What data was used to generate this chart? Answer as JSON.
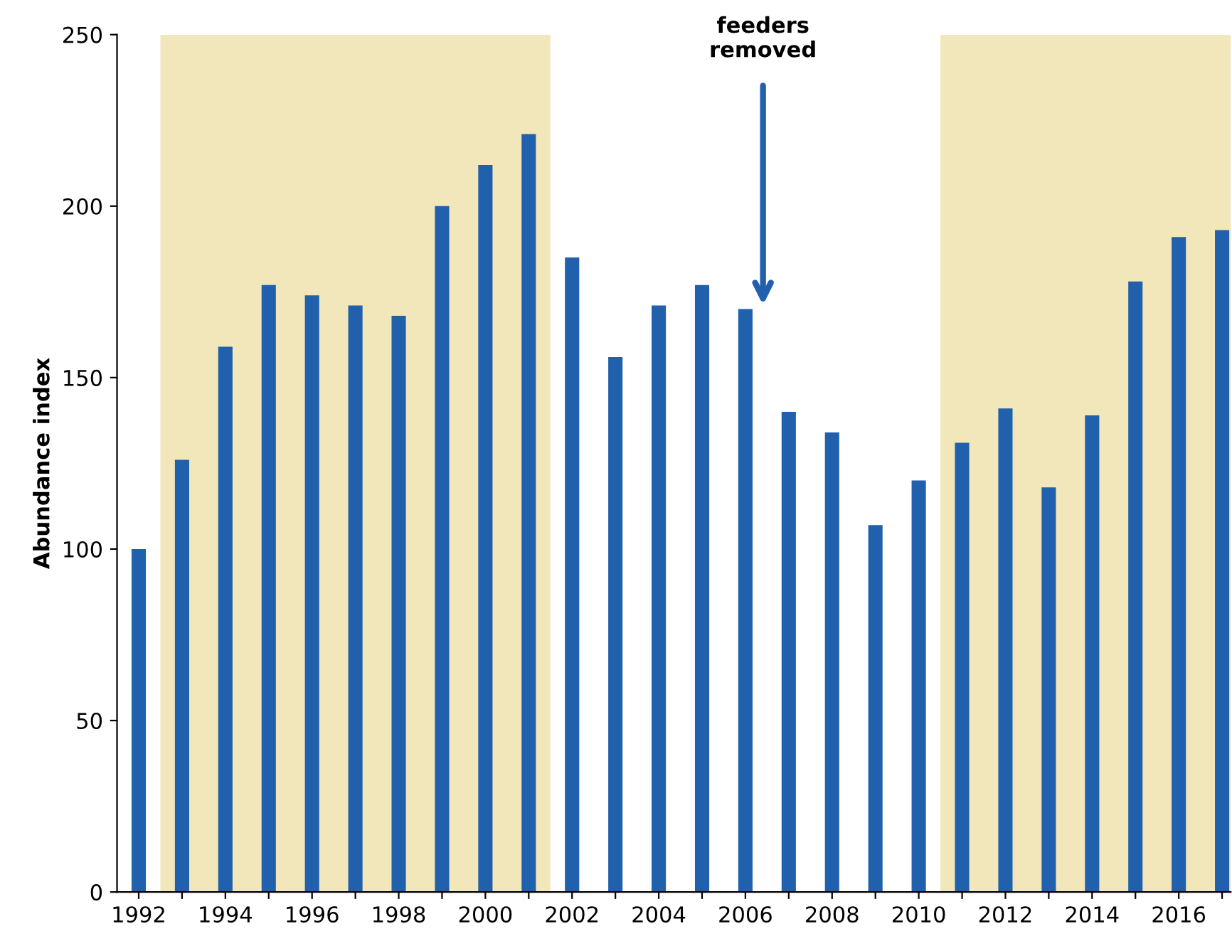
{
  "chart_data": {
    "type": "bar",
    "ylabel": "Abundance index",
    "x": [
      1992,
      1993,
      1994,
      1995,
      1996,
      1997,
      1998,
      1999,
      2000,
      2001,
      2002,
      2003,
      2004,
      2005,
      2006,
      2007,
      2008,
      2009,
      2010,
      2011,
      2012,
      2013,
      2014,
      2015,
      2016,
      2017
    ],
    "series": [
      {
        "color": "#2160ac",
        "values": [
          100,
          126,
          159,
          177,
          174,
          171,
          168,
          200,
          212,
          221,
          185,
          156,
          171,
          177,
          170,
          140,
          134,
          107,
          120,
          131,
          141,
          118,
          139,
          178,
          191,
          193
        ]
      }
    ],
    "xlim": [
      1991.5,
      2017.2
    ],
    "xticks": [
      1992,
      {
        "value": 1993,
        "label": null
      },
      1994,
      {
        "value": 1995,
        "label": null
      },
      1996,
      {
        "value": 1997,
        "label": null
      },
      1998,
      {
        "value": 1999,
        "label": null
      },
      2000,
      {
        "value": 2001,
        "label": null
      },
      2002,
      {
        "value": 2003,
        "label": null
      },
      2004,
      {
        "value": 2005,
        "label": null
      },
      2006,
      {
        "value": 2007,
        "label": null
      },
      2008,
      {
        "value": 2009,
        "label": null
      },
      2010,
      {
        "value": 2011,
        "label": null
      },
      2012,
      {
        "value": 2013,
        "label": null
      },
      2014,
      {
        "value": 2015,
        "label": null
      },
      2016,
      {
        "value": 2017,
        "label": null
      }
    ],
    "ylim": [
      0,
      250
    ],
    "yticks": [
      0,
      50,
      100,
      150,
      200,
      250
    ],
    "bands": [
      {
        "axis": "x",
        "from": 1992.5,
        "to": 2001.5,
        "color": "#f2e6bb"
      },
      {
        "axis": "x",
        "from": 2010.5,
        "to": 2017.2,
        "color": "#f2e6bb"
      }
    ],
    "annotations": [
      "feeders\nremoved"
    ],
    "grid": false,
    "legend": false
  }
}
